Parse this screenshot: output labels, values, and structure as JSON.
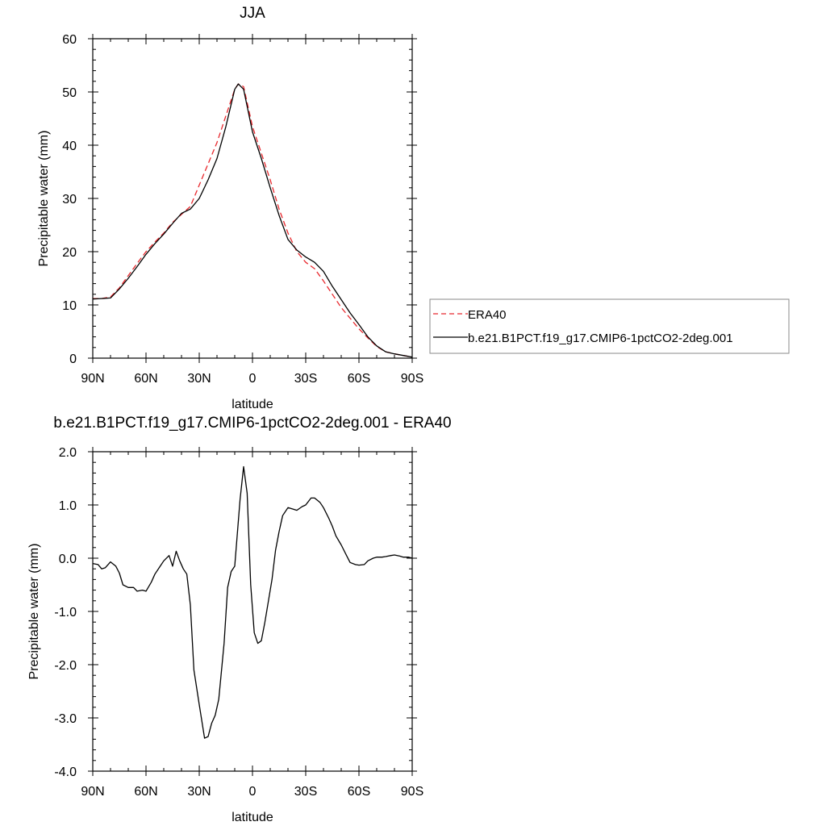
{
  "chart_data": [
    {
      "type": "line",
      "title": "JJA",
      "xlabel": "latitude",
      "ylabel": "Precipitable water (mm)",
      "xlim": [
        90,
        -90
      ],
      "ylim": [
        0,
        60
      ],
      "x_ticks": [
        90,
        60,
        30,
        0,
        -30,
        -60,
        -90
      ],
      "x_tick_labels": [
        "90N",
        "60N",
        "30N",
        "0",
        "30S",
        "60S",
        "90S"
      ],
      "y_ticks": [
        0,
        10,
        20,
        30,
        40,
        50,
        60
      ],
      "y_tick_labels": [
        "0",
        "10",
        "20",
        "30",
        "40",
        "50",
        "60"
      ],
      "legend_position": "right",
      "series": [
        {
          "name": "ERA40",
          "color": "#e8282d",
          "style": "dashed",
          "x": [
            90,
            85,
            80,
            75,
            70,
            65,
            60,
            55,
            50,
            45,
            40,
            35,
            30,
            25,
            20,
            15,
            10,
            8,
            5,
            0,
            -5,
            -10,
            -15,
            -20,
            -25,
            -30,
            -35,
            -40,
            -45,
            -50,
            -55,
            -60,
            -65,
            -70,
            -75,
            -80,
            -85,
            -90
          ],
          "values": [
            11.2,
            11.2,
            11.5,
            13.2,
            15.5,
            17.8,
            20.0,
            21.8,
            23.5,
            25.5,
            27.0,
            28.5,
            32.5,
            36.5,
            40.5,
            45.5,
            50.5,
            51.5,
            51.0,
            43.5,
            38.5,
            33.5,
            28.0,
            23.5,
            20.0,
            18.0,
            16.8,
            14.5,
            12.0,
            9.5,
            7.5,
            5.5,
            3.8,
            2.2,
            1.2,
            0.8,
            0.5,
            0.2
          ]
        },
        {
          "name": "b.e21.B1PCT.f19_g17.CMIP6-1pctCO2-2deg.001",
          "color": "#000000",
          "style": "solid",
          "x": [
            90,
            85,
            80,
            75,
            70,
            65,
            60,
            55,
            50,
            45,
            40,
            35,
            30,
            25,
            20,
            15,
            10,
            8,
            5,
            0,
            -5,
            -10,
            -15,
            -20,
            -25,
            -30,
            -35,
            -40,
            -45,
            -50,
            -55,
            -60,
            -65,
            -70,
            -75,
            -80,
            -85,
            -90
          ],
          "values": [
            11.1,
            11.2,
            11.3,
            13.0,
            15.0,
            17.2,
            19.5,
            21.5,
            23.3,
            25.3,
            27.2,
            28.0,
            30.0,
            33.5,
            37.5,
            43.5,
            50.5,
            51.5,
            50.5,
            42.5,
            37.5,
            32.0,
            26.8,
            22.3,
            20.3,
            19.0,
            18.0,
            16.3,
            13.5,
            11.0,
            8.5,
            6.3,
            4.0,
            2.3,
            1.2,
            0.8,
            0.5,
            0.2
          ]
        }
      ]
    },
    {
      "type": "line",
      "title": "b.e21.B1PCT.f19_g17.CMIP6-1pctCO2-2deg.001 - ERA40",
      "xlabel": "latitude",
      "ylabel": "Precipitable water (mm)",
      "xlim": [
        90,
        -90
      ],
      "ylim": [
        -4,
        2
      ],
      "x_ticks": [
        90,
        60,
        30,
        0,
        -30,
        -60,
        -90
      ],
      "x_tick_labels": [
        "90N",
        "60N",
        "30N",
        "0",
        "30S",
        "60S",
        "90S"
      ],
      "y_ticks": [
        -4,
        -3,
        -2,
        -1,
        0,
        1,
        2
      ],
      "y_tick_labels": [
        "-4.0",
        "-3.0",
        "-2.0",
        "-1.0",
        "0.0",
        "1.0",
        "2.0"
      ],
      "series": [
        {
          "color": "#000000",
          "style": "solid",
          "x": [
            90,
            87,
            85,
            83,
            80,
            77,
            75,
            73,
            70,
            67,
            65,
            62,
            60,
            57,
            55,
            52,
            50,
            47,
            45,
            43,
            41,
            39,
            37,
            35,
            33,
            30,
            27,
            25,
            23,
            21,
            19,
            16,
            14,
            12,
            10,
            7,
            5,
            3,
            1,
            -1,
            -3,
            -5,
            -7,
            -9,
            -11,
            -13,
            -15,
            -17,
            -20,
            -23,
            -25,
            -28,
            -30,
            -33,
            -35,
            -38,
            -40,
            -43,
            -45,
            -47,
            -50,
            -53,
            -55,
            -58,
            -60,
            -63,
            -65,
            -68,
            -70,
            -73,
            -75,
            -78,
            -80,
            -83,
            -85,
            -88,
            -90
          ],
          "values": [
            -0.1,
            -0.12,
            -0.2,
            -0.18,
            -0.07,
            -0.15,
            -0.28,
            -0.5,
            -0.55,
            -0.55,
            -0.62,
            -0.6,
            -0.62,
            -0.45,
            -0.3,
            -0.15,
            -0.05,
            0.05,
            -0.15,
            0.13,
            -0.05,
            -0.2,
            -0.3,
            -0.88,
            -2.1,
            -2.75,
            -3.38,
            -3.35,
            -3.1,
            -2.95,
            -2.65,
            -1.6,
            -0.55,
            -0.25,
            -0.15,
            1.1,
            1.72,
            1.22,
            -0.5,
            -1.4,
            -1.6,
            -1.55,
            -1.2,
            -0.8,
            -0.4,
            0.15,
            0.5,
            0.8,
            0.95,
            0.92,
            0.9,
            0.97,
            1.0,
            1.13,
            1.13,
            1.05,
            0.95,
            0.75,
            0.6,
            0.42,
            0.25,
            0.05,
            -0.08,
            -0.12,
            -0.13,
            -0.12,
            -0.05,
            0.0,
            0.02,
            0.02,
            0.03,
            0.05,
            0.06,
            0.04,
            0.02,
            0.02,
            0.0
          ]
        }
      ]
    }
  ]
}
